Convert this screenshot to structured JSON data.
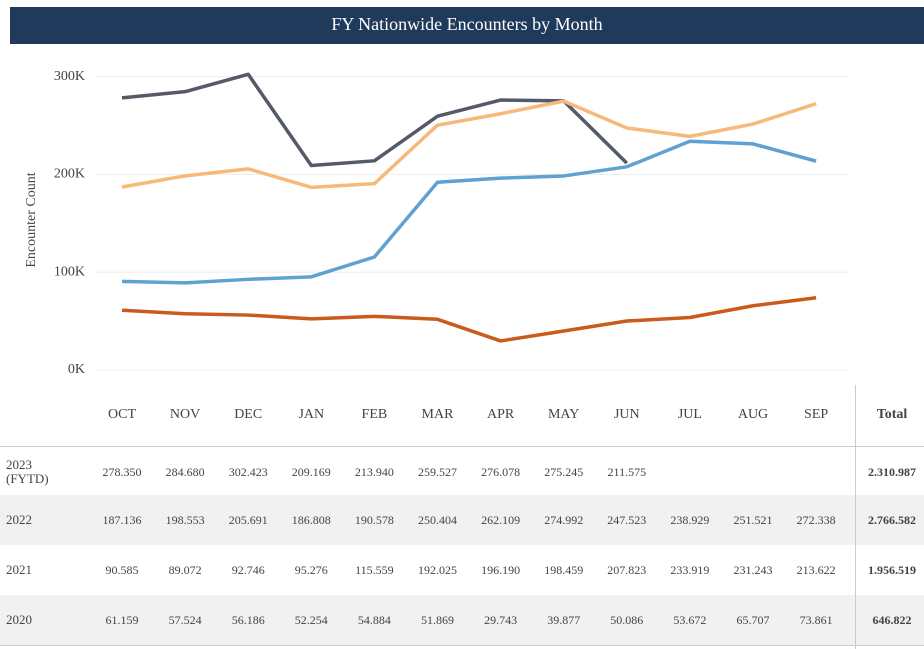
{
  "chart_data": {
    "type": "line",
    "title": "FY Nationwide Encounters by Month",
    "y_label": "Encounter Count",
    "categories": [
      "OCT",
      "NOV",
      "DEC",
      "JAN",
      "FEB",
      "MAR",
      "APR",
      "MAY",
      "JUN",
      "JUL",
      "AUG",
      "SEP"
    ],
    "total_header": "Total",
    "ylim": [
      0,
      315000
    ],
    "yticks": [
      {
        "value": 0,
        "label": "0K"
      },
      {
        "value": 100000,
        "label": "100K"
      },
      {
        "value": 200000,
        "label": "200K"
      },
      {
        "value": 300000,
        "label": "300K"
      }
    ],
    "grid": true,
    "series": [
      {
        "name": "2023 (FYTD)",
        "color": "#545a66",
        "values": [
          278350,
          284680,
          302423,
          209169,
          213940,
          259527,
          276078,
          275245,
          211575,
          null,
          null,
          null
        ],
        "value_labels": [
          "278.350",
          "284.680",
          "302.423",
          "209.169",
          "213.940",
          "259.527",
          "276.078",
          "275.245",
          "211.575",
          null,
          null,
          null
        ],
        "total": "2.310.987"
      },
      {
        "name": "2022",
        "color": "#f7b97b",
        "values": [
          187136,
          198553,
          205691,
          186808,
          190578,
          250404,
          262109,
          274992,
          247523,
          238929,
          251521,
          272338
        ],
        "value_labels": [
          "187.136",
          "198.553",
          "205.691",
          "186.808",
          "190.578",
          "250.404",
          "262.109",
          "274.992",
          "247.523",
          "238.929",
          "251.521",
          "272.338"
        ],
        "total": "2.766.582"
      },
      {
        "name": "2021",
        "color": "#5fa2d2",
        "values": [
          90585,
          89072,
          92746,
          95276,
          115559,
          192025,
          196190,
          198459,
          207823,
          233919,
          231243,
          213622
        ],
        "value_labels": [
          "90.585",
          "89.072",
          "92.746",
          "95.276",
          "115.559",
          "192.025",
          "196.190",
          "198.459",
          "207.823",
          "233.919",
          "231.243",
          "213.622"
        ],
        "total": "1.956.519"
      },
      {
        "name": "2020",
        "color": "#c95b1c",
        "values": [
          61159,
          57524,
          56186,
          52254,
          54884,
          51869,
          29743,
          39877,
          50086,
          53672,
          65707,
          73861
        ],
        "value_labels": [
          "61.159",
          "57.524",
          "56.186",
          "52.254",
          "54.884",
          "51.869",
          "29.743",
          "39.877",
          "50.086",
          "53.672",
          "65.707",
          "73.861"
        ],
        "total": "646.822"
      }
    ]
  }
}
